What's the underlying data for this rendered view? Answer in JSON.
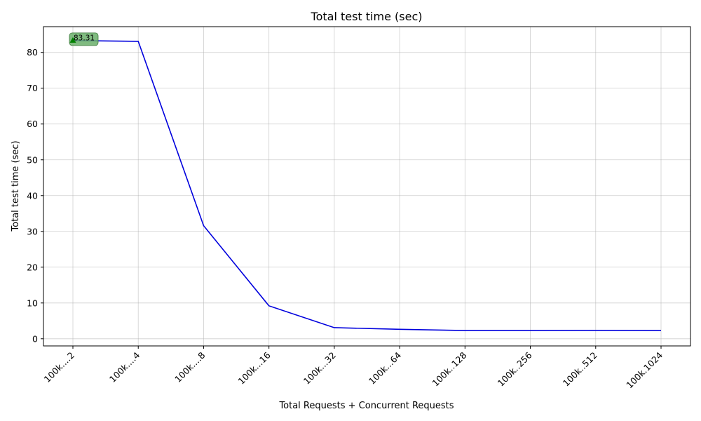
{
  "chart_data": {
    "type": "line",
    "title": "Total test time (sec)",
    "xlabel": "Total Requests + Concurrent Requests",
    "ylabel": "Total test time (sec)",
    "categories": [
      "100k....2",
      "100k....4",
      "100k....8",
      "100k...16",
      "100k...32",
      "100k...64",
      "100k..128",
      "100k..256",
      "100k..512",
      "100k.1024"
    ],
    "series": [
      {
        "values": [
          83.31,
          83.1,
          31.6,
          9.2,
          3.1,
          2.65,
          2.3,
          2.3,
          2.35,
          2.3
        ],
        "color": "#0000dd"
      }
    ],
    "ylim": [
      -2,
      87.2
    ],
    "yticks": [
      0,
      10,
      20,
      30,
      40,
      50,
      60,
      70,
      80
    ],
    "grid": true,
    "annotation": {
      "label": "83.31",
      "category_index": 0,
      "value": 83.31,
      "marker_color": "#008000",
      "box_color": "#6aaf6a"
    }
  }
}
